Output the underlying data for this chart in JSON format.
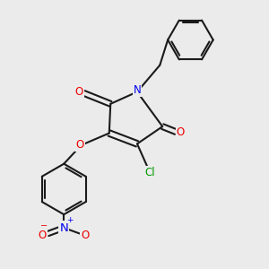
{
  "bg_color": "#ebebeb",
  "bond_color": "#1a1a1a",
  "bond_width": 1.5,
  "atom_colors": {
    "N": "#0000ee",
    "O": "#ee0000",
    "Cl": "#009900",
    "C": "#1a1a1a"
  },
  "font_size_atom": 8.5,
  "font_size_charge": 6.5
}
